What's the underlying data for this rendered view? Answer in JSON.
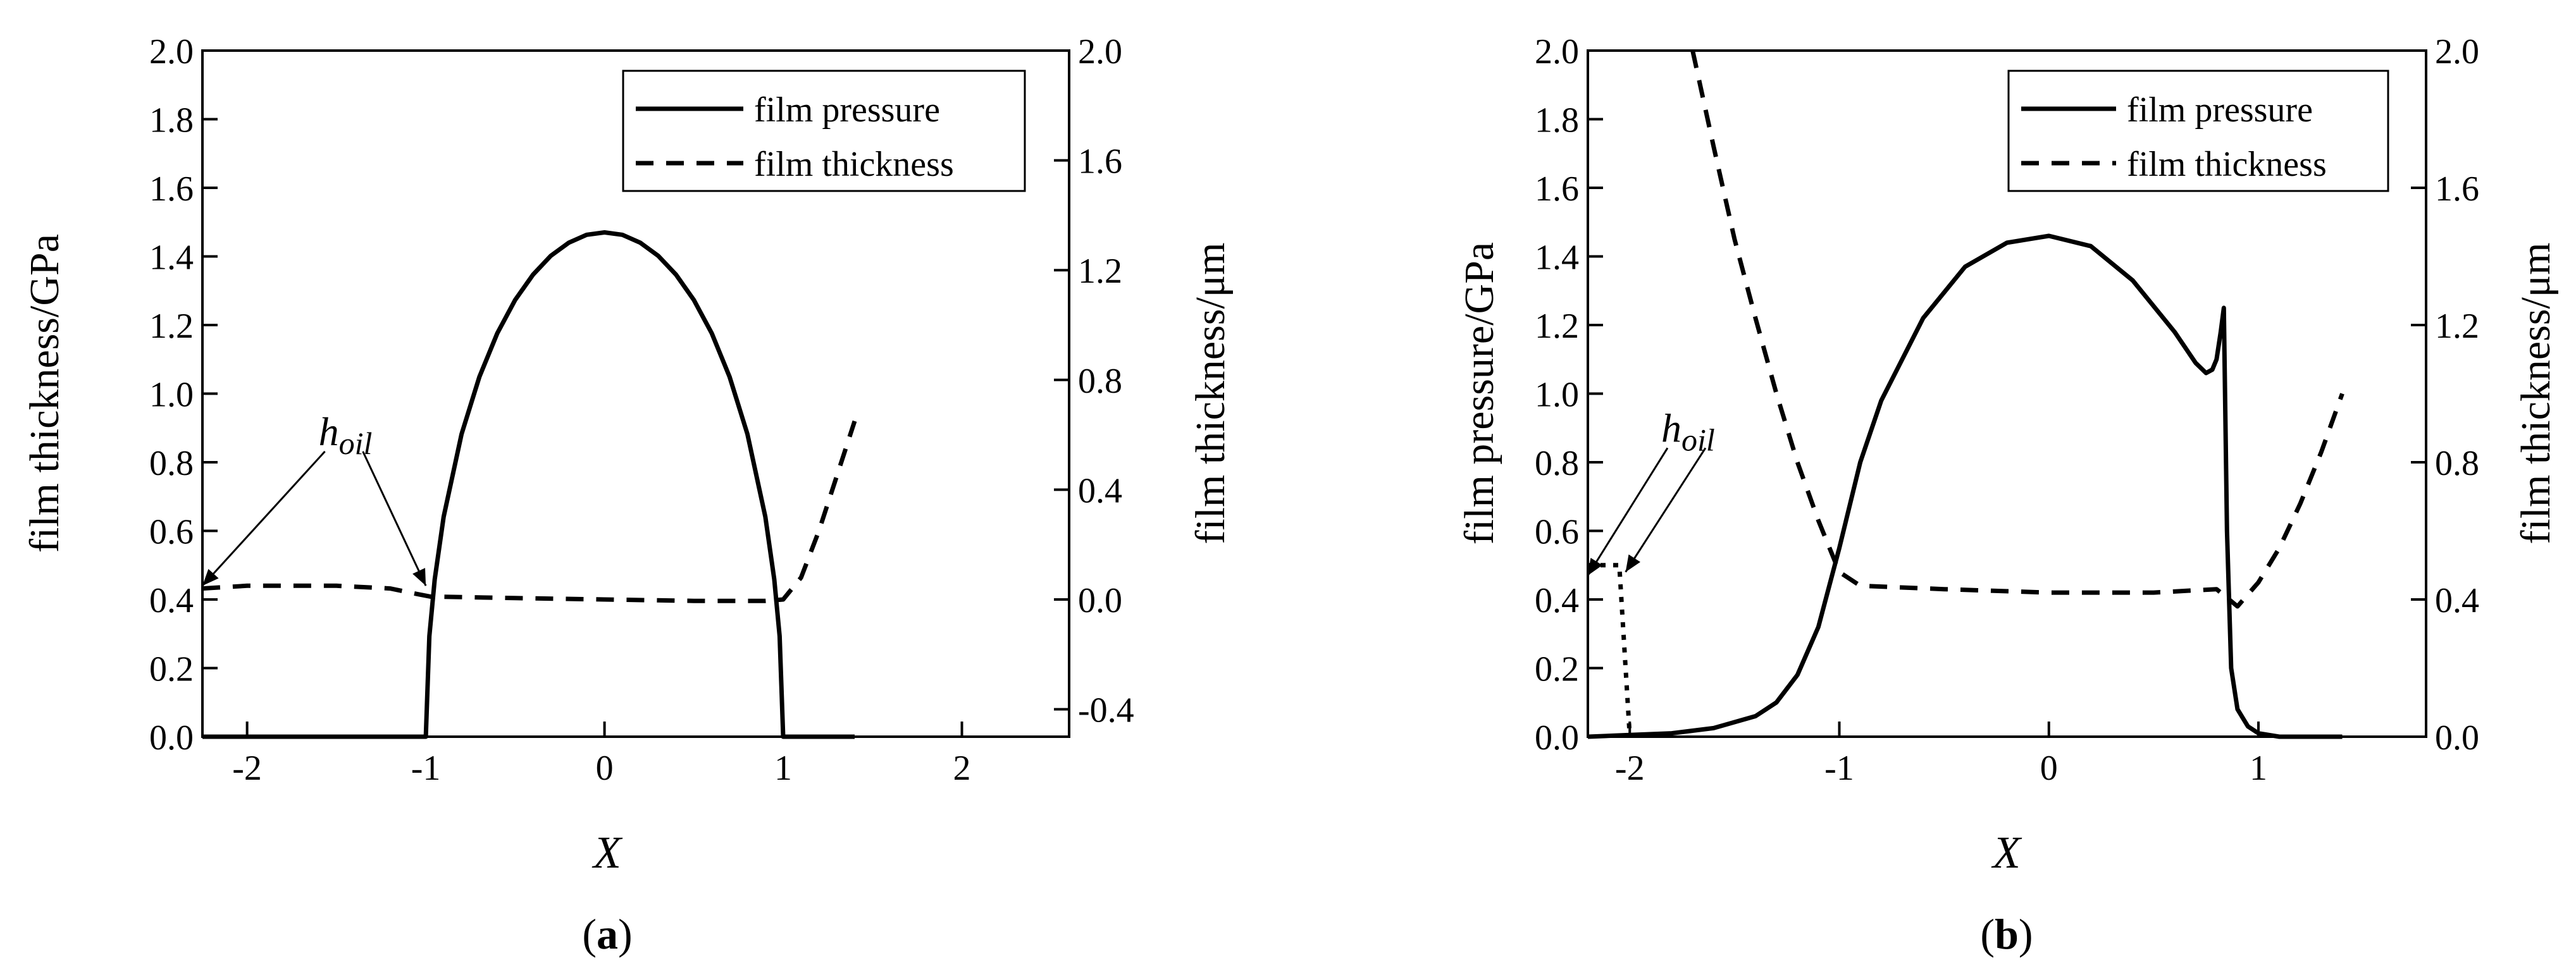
{
  "chart_data": [
    {
      "panel": "a",
      "type": "line",
      "caption_open": "(",
      "caption": "a",
      "caption_close": ")",
      "xlabel": "X",
      "ylabel_left": "film thickness/GPa",
      "ylabel_right": "film thickness/μm",
      "xlim": [
        -2.25,
        2.6
      ],
      "ylim_left": [
        0,
        2.0
      ],
      "ylim_right": [
        -0.5,
        2.0
      ],
      "x_ticks": [
        -2,
        -1,
        0,
        1,
        2
      ],
      "x_tick_labels": [
        "-2",
        "-1",
        "0",
        "1",
        "2"
      ],
      "y_left_ticks": [
        0,
        0.2,
        0.4,
        0.6,
        0.8,
        1.0,
        1.2,
        1.4,
        1.6,
        1.8,
        2.0
      ],
      "y_left_tick_labels": [
        "0.0",
        "0.2",
        "0.4",
        "0.6",
        "0.8",
        "1.0",
        "1.2",
        "1.4",
        "1.6",
        "1.8",
        "2.0"
      ],
      "y_right_ticks": [
        -0.4,
        0.0,
        0.4,
        0.8,
        1.2,
        1.6,
        2.0
      ],
      "y_right_tick_labels": [
        "-0.4",
        "0.0",
        "0.4",
        "0.8",
        "1.2",
        "1.6",
        "2.0"
      ],
      "legend": [
        "film pressure",
        "film thickness"
      ],
      "legend_position": "top-right",
      "series": [
        {
          "name": "film pressure",
          "axis": "left",
          "style": "solid",
          "x": [
            -2.25,
            -1.0,
            -1.0,
            -0.98,
            -0.95,
            -0.9,
            -0.8,
            -0.7,
            -0.6,
            -0.5,
            -0.4,
            -0.3,
            -0.2,
            -0.1,
            0,
            0.1,
            0.2,
            0.3,
            0.4,
            0.5,
            0.6,
            0.7,
            0.8,
            0.9,
            0.95,
            0.98,
            1.0,
            1.0,
            1.4
          ],
          "values": [
            0,
            0,
            0,
            0.293,
            0.459,
            0.641,
            0.882,
            1.049,
            1.176,
            1.273,
            1.347,
            1.402,
            1.44,
            1.463,
            1.47,
            1.463,
            1.44,
            1.402,
            1.347,
            1.273,
            1.176,
            1.049,
            0.882,
            0.641,
            0.459,
            0.293,
            0,
            0,
            0
          ]
        },
        {
          "name": "film thickness",
          "axis": "right",
          "style": "dashed",
          "x": [
            -2.25,
            -2.0,
            -1.5,
            -1.2,
            -1.05,
            -0.97,
            -0.9,
            -0.5,
            0,
            0.5,
            0.9,
            1.0,
            1.1,
            1.2,
            1.3,
            1.4
          ],
          "values": [
            0.04,
            0.05,
            0.05,
            0.04,
            0.02,
            0.01,
            0.01,
            0.005,
            0.0,
            -0.005,
            -0.005,
            0.0,
            0.08,
            0.25,
            0.45,
            0.65
          ]
        }
      ],
      "annotations": [
        {
          "text": "h",
          "sub": "oil",
          "x": -1.6,
          "y_left": 0.85,
          "targets": [
            [
              -2.25,
              0.44
            ],
            [
              -1.0,
              0.44
            ]
          ]
        }
      ]
    },
    {
      "panel": "b",
      "type": "line",
      "caption_open": "(",
      "caption": "b",
      "caption_close": ")",
      "xlabel": "X",
      "ylabel_left": "film pressure/GPa",
      "ylabel_right": "film thickness/μm",
      "xlim": [
        -2.2,
        1.8
      ],
      "ylim_left": [
        0,
        2.0
      ],
      "ylim_right": [
        0,
        2.0
      ],
      "x_ticks": [
        -2,
        -1,
        0,
        1
      ],
      "x_tick_labels": [
        "-2",
        "-1",
        "0",
        "1"
      ],
      "y_left_ticks": [
        0,
        0.2,
        0.4,
        0.6,
        0.8,
        1.0,
        1.2,
        1.4,
        1.6,
        1.8,
        2.0
      ],
      "y_left_tick_labels": [
        "0.0",
        "0.2",
        "0.4",
        "0.6",
        "0.8",
        "1.0",
        "1.2",
        "1.4",
        "1.6",
        "1.8",
        "2.0"
      ],
      "y_right_ticks": [
        0,
        0.4,
        0.8,
        1.2,
        1.6,
        2.0
      ],
      "y_right_tick_labels": [
        "0.0",
        "0.4",
        "0.8",
        "1.2",
        "1.6",
        "2.0"
      ],
      "legend": [
        "film pressure",
        "film thickness"
      ],
      "legend_position": "top-right",
      "series": [
        {
          "name": "film pressure",
          "axis": "left",
          "style": "solid",
          "x": [
            -2.2,
            -2.0,
            -1.8,
            -1.6,
            -1.4,
            -1.3,
            -1.2,
            -1.1,
            -1.0,
            -0.9,
            -0.8,
            -0.6,
            -0.4,
            -0.2,
            0,
            0.2,
            0.4,
            0.6,
            0.7,
            0.75,
            0.78,
            0.8,
            0.82,
            0.835,
            0.85,
            0.87,
            0.9,
            0.95,
            1.0,
            1.1,
            1.4
          ],
          "values": [
            0.0,
            0.005,
            0.01,
            0.025,
            0.06,
            0.1,
            0.18,
            0.32,
            0.55,
            0.8,
            0.98,
            1.22,
            1.37,
            1.44,
            1.46,
            1.43,
            1.33,
            1.18,
            1.09,
            1.06,
            1.07,
            1.1,
            1.18,
            1.25,
            0.6,
            0.2,
            0.08,
            0.03,
            0.01,
            0.0,
            0.0
          ]
        },
        {
          "name": "film thickness",
          "axis": "right",
          "style": "dashed",
          "x": [
            -1.7,
            -1.6,
            -1.5,
            -1.4,
            -1.3,
            -1.2,
            -1.1,
            -1.0,
            -0.9,
            -0.5,
            0,
            0.5,
            0.8,
            0.9,
            1.0,
            1.1,
            1.2,
            1.3,
            1.4
          ],
          "values": [
            2.0,
            1.72,
            1.45,
            1.22,
            1.0,
            0.8,
            0.63,
            0.48,
            0.44,
            0.43,
            0.42,
            0.42,
            0.43,
            0.38,
            0.45,
            0.55,
            0.68,
            0.83,
            1.0
          ]
        },
        {
          "name": "film thickness",
          "axis": "right",
          "style": "dotted",
          "x": [
            -2.2,
            -2.05,
            -2.05,
            -2.0
          ],
          "values": [
            0.5,
            0.5,
            0.5,
            0.0
          ]
        }
      ],
      "annotations": [
        {
          "text": "h",
          "sub": "oil",
          "x": -1.85,
          "y_left": 0.86,
          "targets": [
            [
              -2.2,
              0.47
            ],
            [
              -2.02,
              0.48
            ]
          ]
        }
      ]
    }
  ]
}
